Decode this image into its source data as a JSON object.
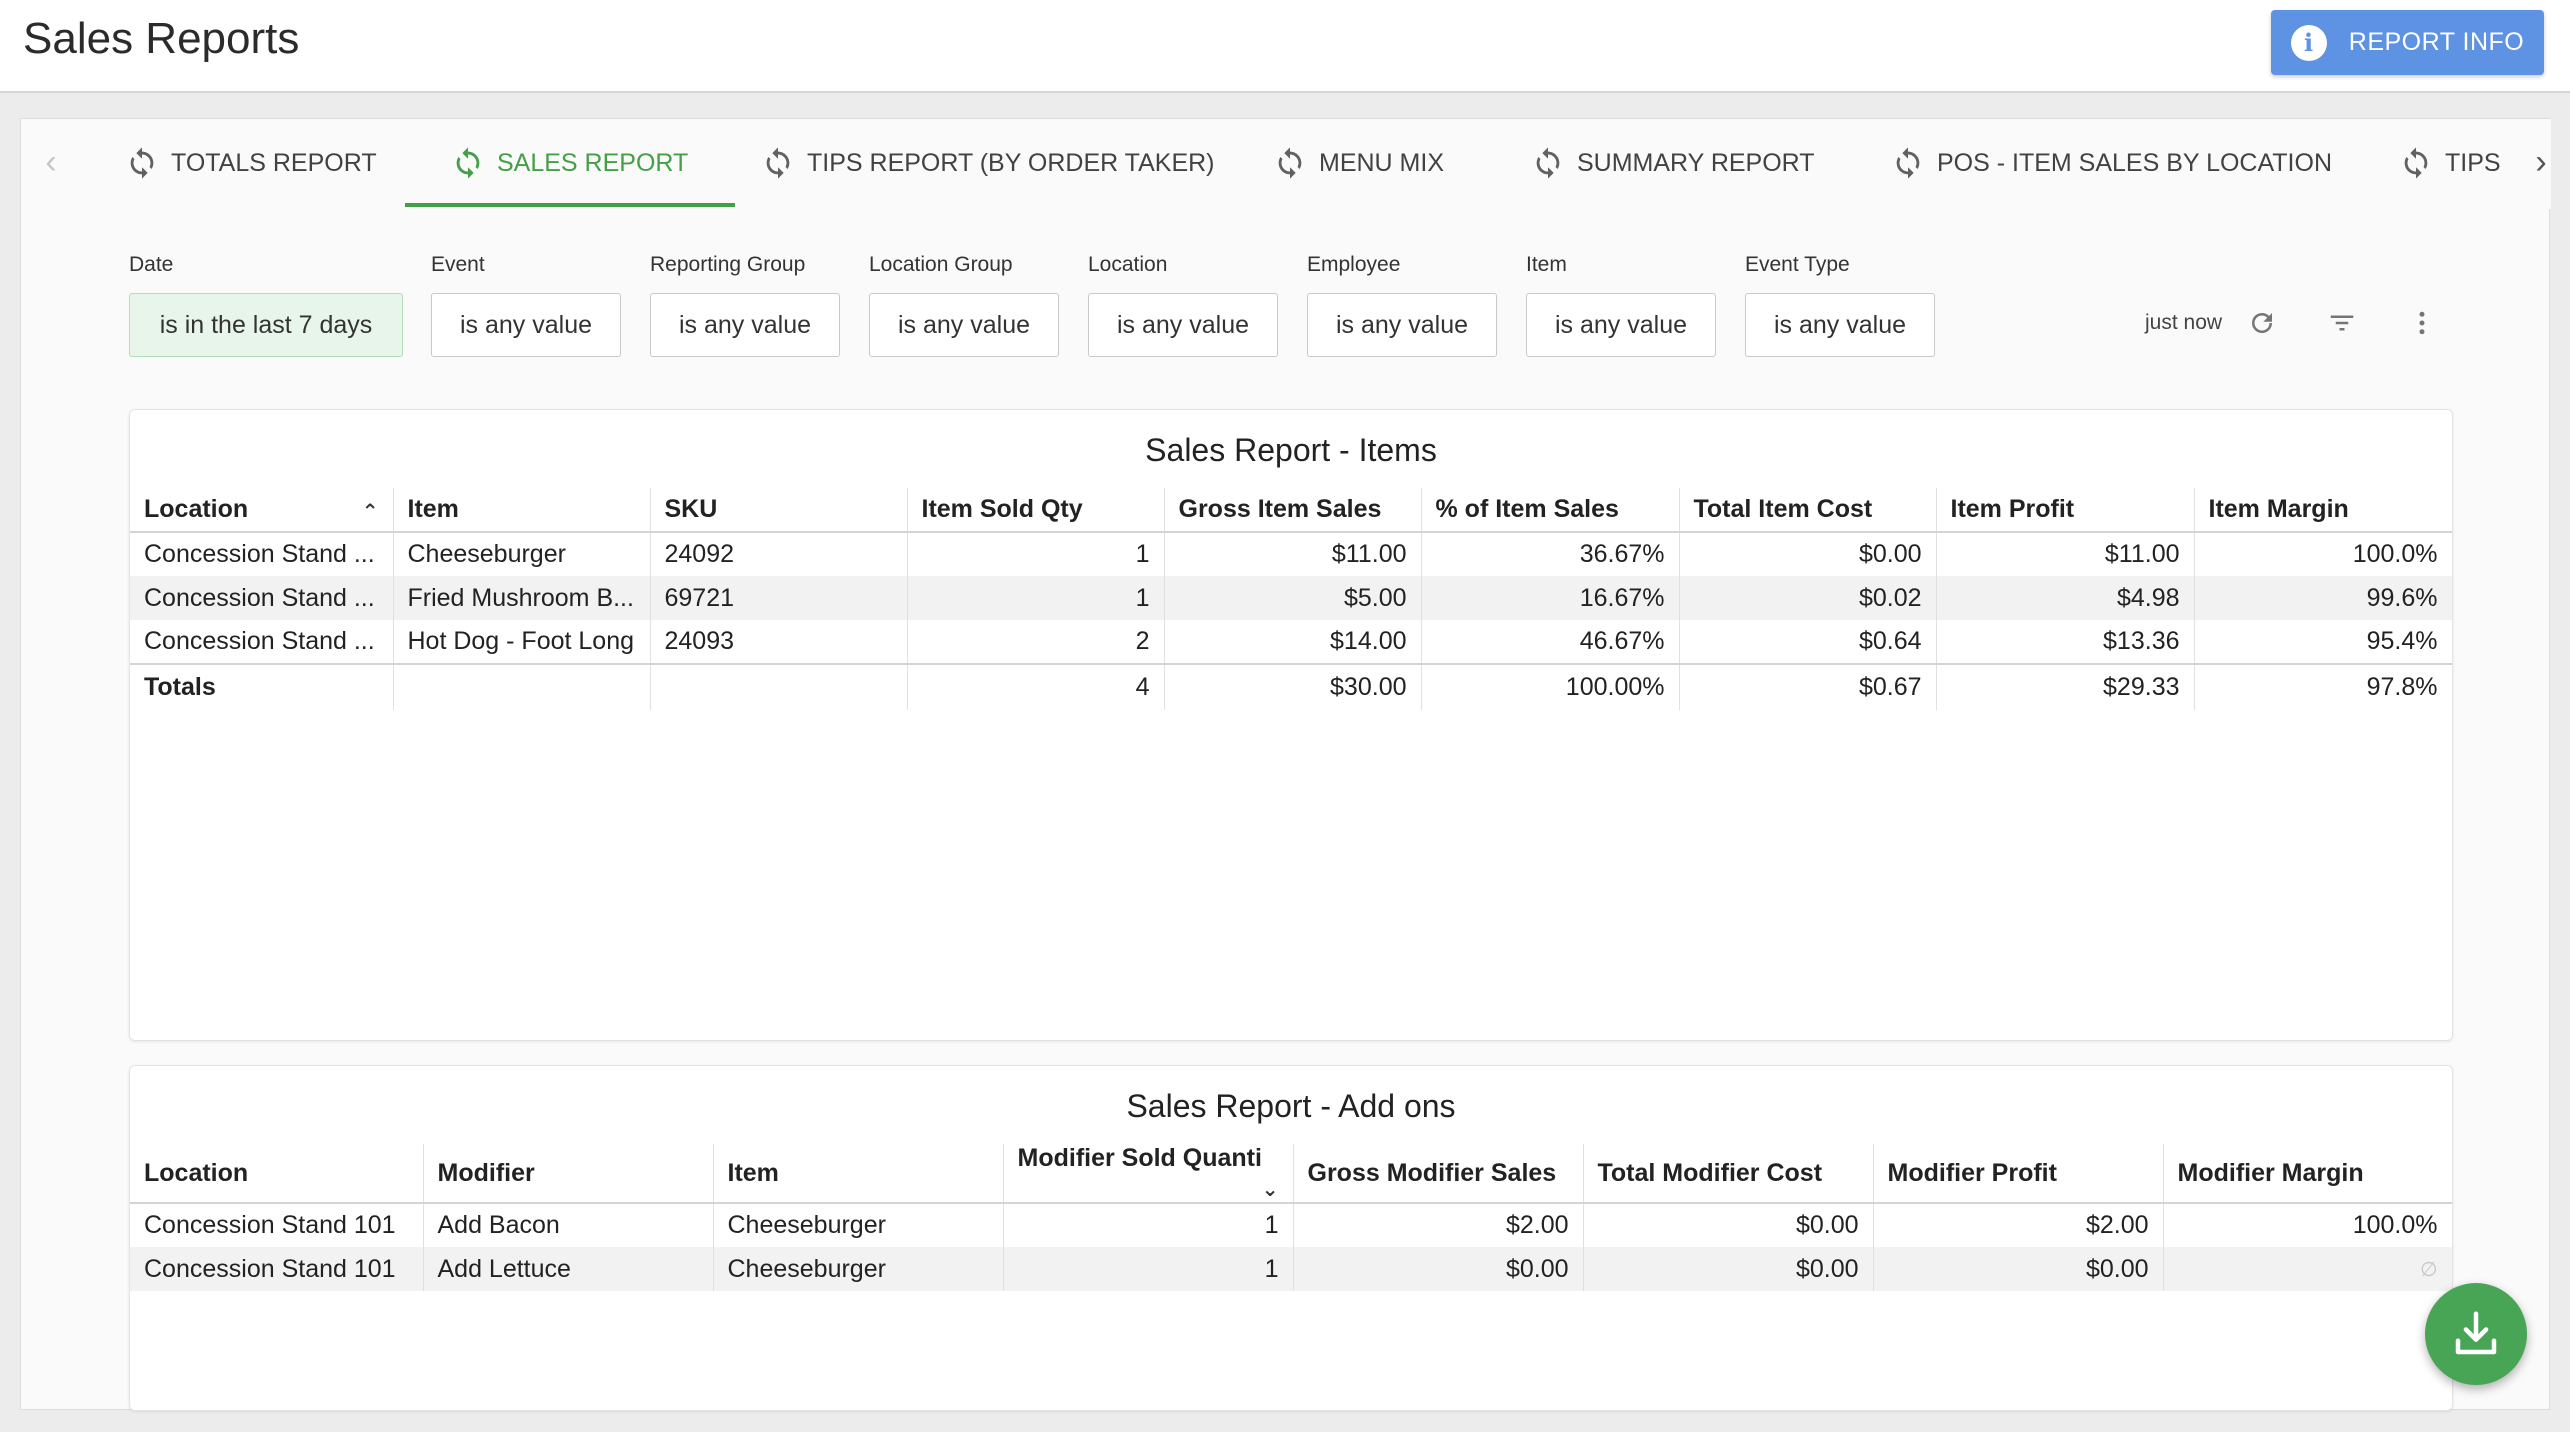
{
  "header": {
    "title": "Sales Reports",
    "report_info_label": "REPORT INFO"
  },
  "tabs": [
    {
      "label": "TOTALS REPORT"
    },
    {
      "label": "SALES REPORT"
    },
    {
      "label": "TIPS REPORT (BY ORDER TAKER)"
    },
    {
      "label": "MENU MIX"
    },
    {
      "label": "SUMMARY REPORT"
    },
    {
      "label": "POS - ITEM SALES BY LOCATION"
    },
    {
      "label": "TIPS"
    }
  ],
  "active_tab": "SALES REPORT",
  "filters": [
    {
      "label": "Date",
      "value": "is in the last 7 days"
    },
    {
      "label": "Event",
      "value": "is any value"
    },
    {
      "label": "Reporting Group",
      "value": "is any value"
    },
    {
      "label": "Location Group",
      "value": "is any value"
    },
    {
      "label": "Location",
      "value": "is any value"
    },
    {
      "label": "Employee",
      "value": "is any value"
    },
    {
      "label": "Item",
      "value": "is any value"
    },
    {
      "label": "Event Type",
      "value": "is any value"
    }
  ],
  "toolbar": {
    "updated": "just now"
  },
  "items_report": {
    "title": "Sales Report - Items",
    "columns": [
      "Location",
      "Item",
      "SKU",
      "Item Sold Qty",
      "Gross Item Sales",
      "% of Item Sales",
      "Total Item Cost",
      "Item Profit",
      "Item Margin"
    ],
    "rows": [
      [
        "Concession Stand ...",
        "Cheeseburger",
        "24092",
        "1",
        "$11.00",
        "36.67%",
        "$0.00",
        "$11.00",
        "100.0%"
      ],
      [
        "Concession Stand ...",
        "Fried Mushroom B...",
        "69721",
        "1",
        "$5.00",
        "16.67%",
        "$0.02",
        "$4.98",
        "99.6%"
      ],
      [
        "Concession Stand ...",
        "Hot Dog - Foot Long",
        "24093",
        "2",
        "$14.00",
        "46.67%",
        "$0.64",
        "$13.36",
        "95.4%"
      ]
    ],
    "totals": [
      "Totals",
      "",
      "",
      "4",
      "$30.00",
      "100.00%",
      "$0.67",
      "$29.33",
      "97.8%"
    ]
  },
  "addons_report": {
    "title": "Sales Report - Add ons",
    "columns": [
      "Location",
      "Modifier",
      "Item",
      "Modifier Sold Quanti",
      "Gross Modifier Sales",
      "Total Modifier Cost",
      "Modifier Profit",
      "Modifier Margin"
    ],
    "rows": [
      [
        "Concession Stand 101",
        "Add Bacon",
        "Cheeseburger",
        "1",
        "$2.00",
        "$0.00",
        "$2.00",
        "100.0%"
      ],
      [
        "Concession Stand 101",
        "Add Lettuce",
        "Cheeseburger",
        "1",
        "$0.00",
        "$0.00",
        "$0.00",
        "∅"
      ]
    ]
  },
  "colors": {
    "accent_green": "#43a047",
    "info_blue": "#5e92e2"
  }
}
